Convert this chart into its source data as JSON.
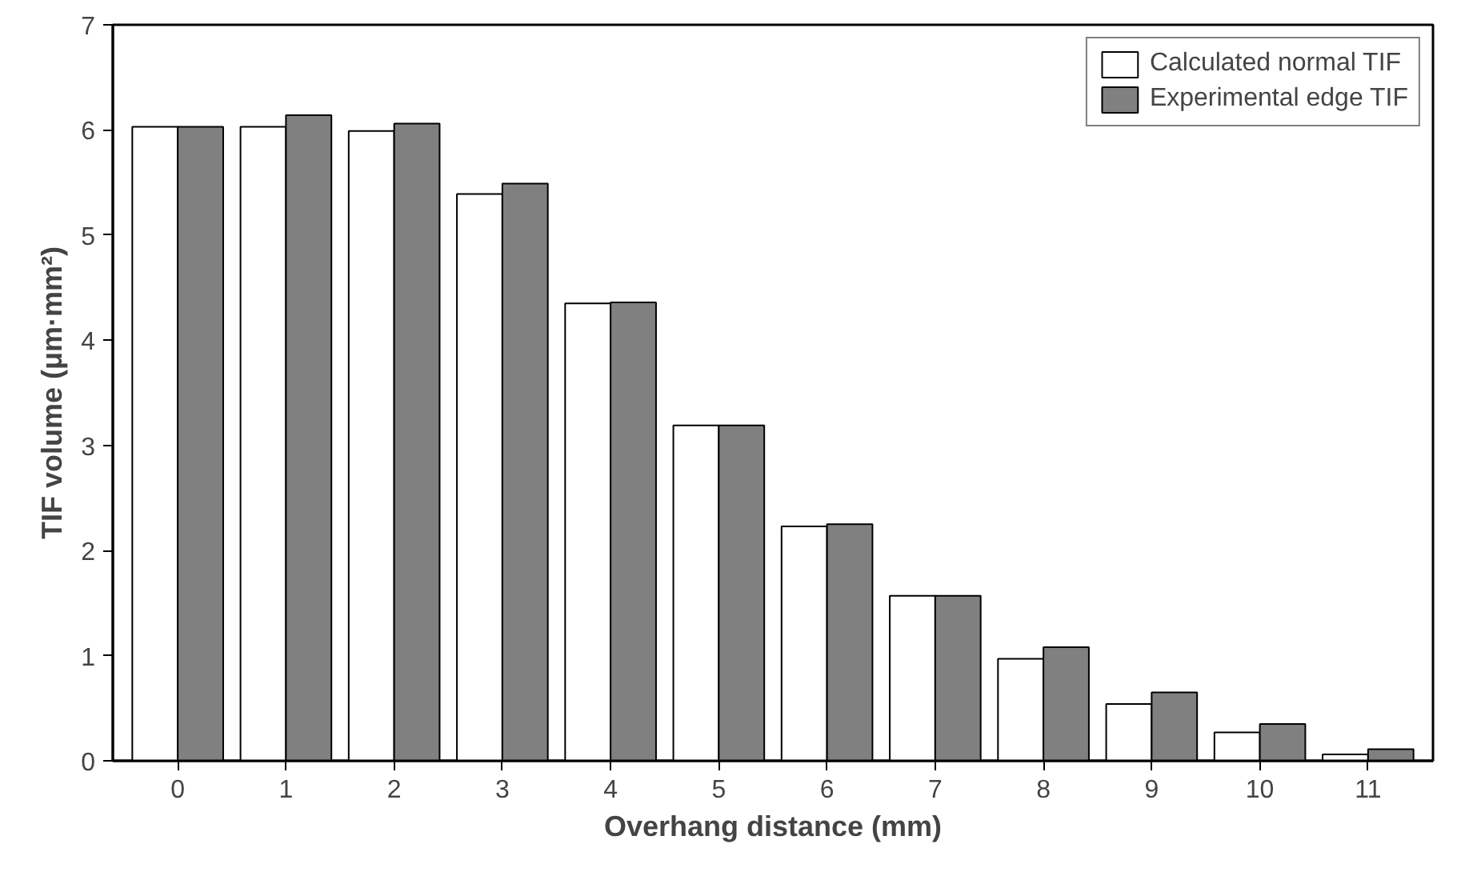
{
  "chart_data": {
    "type": "bar",
    "xlabel": "Overhang distance (mm)",
    "ylabel": "TIF volume (μm·mm²)",
    "categories": [
      "0",
      "1",
      "2",
      "3",
      "4",
      "5",
      "6",
      "7",
      "8",
      "9",
      "10",
      "11"
    ],
    "series": [
      {
        "name": "Calculated normal TIF",
        "color": "#ffffff",
        "values": [
          6.03,
          6.03,
          5.99,
          5.39,
          4.35,
          3.19,
          2.23,
          1.57,
          0.97,
          0.54,
          0.27,
          0.06
        ]
      },
      {
        "name": "Experimental edge TIF",
        "color": "#808080",
        "values": [
          6.03,
          6.14,
          6.06,
          5.49,
          4.36,
          3.19,
          2.25,
          1.57,
          1.08,
          0.65,
          0.35,
          0.11
        ]
      }
    ],
    "ylim": [
      0,
      7
    ],
    "yticks": [
      0,
      1,
      2,
      3,
      4,
      5,
      6,
      7
    ],
    "grid": false,
    "legend": "top right"
  }
}
